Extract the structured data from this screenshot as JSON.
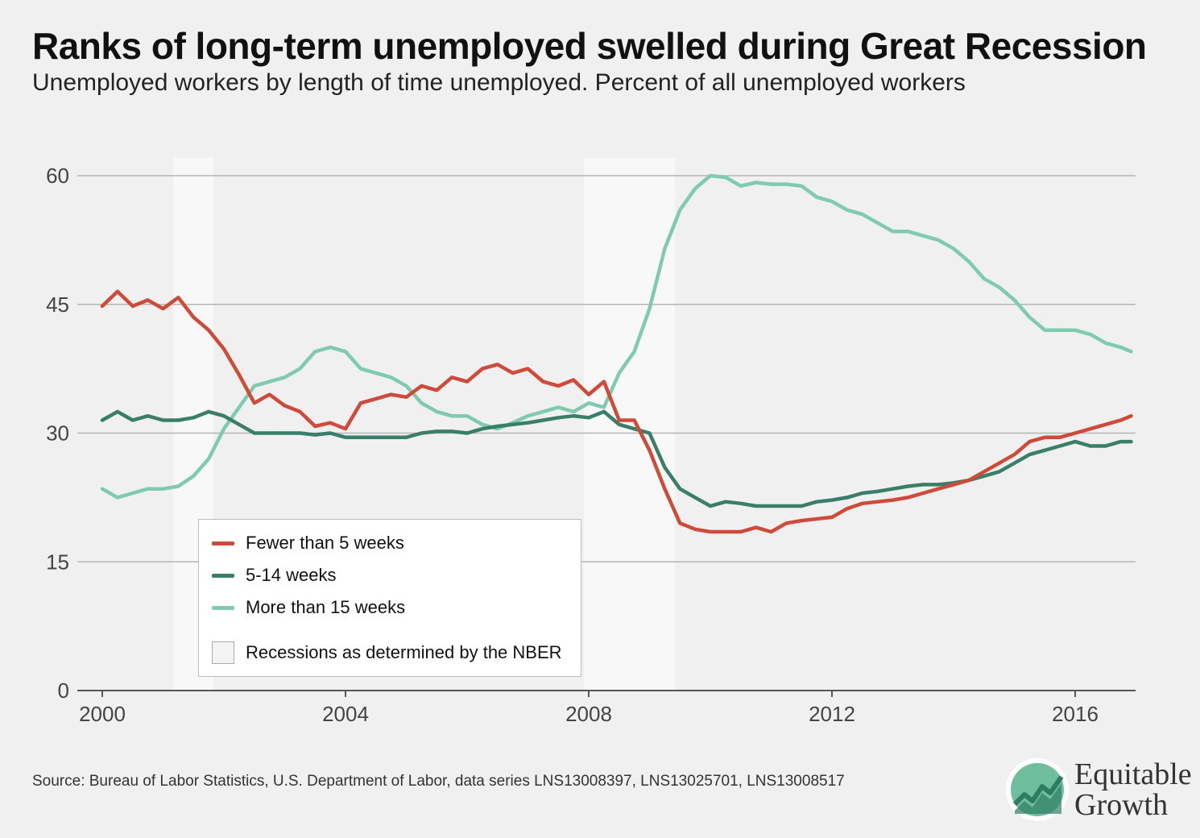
{
  "title": "Ranks of long-term unemployed swelled during Great Recession",
  "subtitle": "Unemployed workers by length of time unemployed. Percent of all unemployed workers",
  "source": "Source: Bureau of Labor Statistics, U.S. Department of Labor, data series LNS13008397, LNS13025701, LNS13008517",
  "logo": {
    "line1": "Equitable",
    "line2": "Growth",
    "icon": "rising-chart-logo-icon"
  },
  "colors": {
    "background": "#f0f0f0",
    "gridline": "#b5b5b5",
    "recession": "#f8f8f8",
    "fewer_than_5": "#cf4b39",
    "w5_14": "#387e68",
    "more_than_15": "#7ecbb0"
  },
  "legend": {
    "items": [
      "Fewer than 5 weeks",
      "5-14 weeks",
      "More than 15 weeks"
    ],
    "recession_label": "Recessions as determined by the NBER"
  },
  "chart_data": {
    "type": "line",
    "title": "Ranks of long-term unemployed swelled during Great Recession",
    "subtitle": "Unemployed workers by length of time unemployed. Percent of all unemployed workers",
    "xlabel": "",
    "ylabel": "",
    "xlim": [
      2000,
      2017
    ],
    "ylim": [
      0,
      60
    ],
    "x_ticks": [
      2000,
      2004,
      2008,
      2012,
      2016
    ],
    "y_ticks": [
      0,
      15,
      30,
      45,
      60
    ],
    "grid": true,
    "legend_position": "bottom-left",
    "recessions": [
      [
        2001.17,
        2001.83
      ],
      [
        2007.92,
        2009.42
      ]
    ],
    "x": [
      2000,
      2000.25,
      2000.5,
      2000.75,
      2001,
      2001.25,
      2001.5,
      2001.75,
      2002,
      2002.25,
      2002.5,
      2002.75,
      2003,
      2003.25,
      2003.5,
      2003.75,
      2004,
      2004.25,
      2004.5,
      2004.75,
      2005,
      2005.25,
      2005.5,
      2005.75,
      2006,
      2006.25,
      2006.5,
      2006.75,
      2007,
      2007.25,
      2007.5,
      2007.75,
      2008,
      2008.25,
      2008.5,
      2008.75,
      2009,
      2009.25,
      2009.5,
      2009.75,
      2010,
      2010.25,
      2010.5,
      2010.75,
      2011,
      2011.25,
      2011.5,
      2011.75,
      2012,
      2012.25,
      2012.5,
      2012.75,
      2013,
      2013.25,
      2013.5,
      2013.75,
      2014,
      2014.25,
      2014.5,
      2014.75,
      2015,
      2015.25,
      2015.5,
      2015.75,
      2016,
      2016.25,
      2016.5,
      2016.75,
      2016.92
    ],
    "series": [
      {
        "name": "Fewer than 5 weeks",
        "values": [
          44.8,
          46.5,
          44.8,
          45.5,
          44.5,
          45.8,
          43.5,
          42,
          39.8,
          36.8,
          33.5,
          34.5,
          33.2,
          32.5,
          30.8,
          31.2,
          30.5,
          33.5,
          34,
          34.5,
          34.2,
          35.5,
          35,
          36.5,
          36,
          37.5,
          38,
          37,
          37.5,
          36,
          35.5,
          36.2,
          34.5,
          36,
          31.5,
          31.5,
          28,
          23.5,
          19.5,
          18.8,
          18.5,
          18.5,
          18.5,
          19,
          18.5,
          19.5,
          19.8,
          20,
          20.2,
          21.2,
          21.8,
          22,
          22.2,
          22.5,
          23,
          23.5,
          24,
          24.5,
          25.5,
          26.5,
          27.5,
          29,
          29.5,
          29.5,
          30,
          30.5,
          31,
          31.5,
          32
        ]
      },
      {
        "name": "5-14 weeks",
        "values": [
          31.5,
          32.5,
          31.5,
          32,
          31.5,
          31.5,
          31.8,
          32.5,
          32,
          31,
          30,
          30,
          30,
          30,
          29.8,
          30,
          29.5,
          29.5,
          29.5,
          29.5,
          29.5,
          30,
          30.2,
          30.2,
          30,
          30.5,
          30.8,
          31,
          31.2,
          31.5,
          31.8,
          32,
          31.8,
          32.5,
          31,
          30.5,
          30,
          26,
          23.5,
          22.5,
          21.5,
          22,
          21.8,
          21.5,
          21.5,
          21.5,
          21.5,
          22,
          22.2,
          22.5,
          23,
          23.2,
          23.5,
          23.8,
          24,
          24,
          24.2,
          24.5,
          25,
          25.5,
          26.5,
          27.5,
          28,
          28.5,
          29,
          28.5,
          28.5,
          29,
          29
        ]
      },
      {
        "name": "More than 15 weeks",
        "values": [
          23.5,
          22.5,
          23,
          23.5,
          23.5,
          23.8,
          25,
          27,
          30.5,
          33,
          35.5,
          36,
          36.5,
          37.5,
          39.5,
          40,
          39.5,
          37.5,
          37,
          36.5,
          35.5,
          33.5,
          32.5,
          32,
          32,
          31,
          30.5,
          31.2,
          32,
          32.5,
          33,
          32.5,
          33.5,
          33,
          37,
          39.5,
          44.5,
          51.5,
          56,
          58.5,
          60,
          59.8,
          58.8,
          59.2,
          59,
          59,
          58.8,
          57.5,
          57,
          56,
          55.5,
          54.5,
          53.5,
          53.5,
          53,
          52.5,
          51.5,
          50,
          48,
          47,
          45.5,
          43.5,
          42,
          42,
          42,
          41.5,
          40.5,
          40,
          39.5
        ]
      }
    ]
  }
}
